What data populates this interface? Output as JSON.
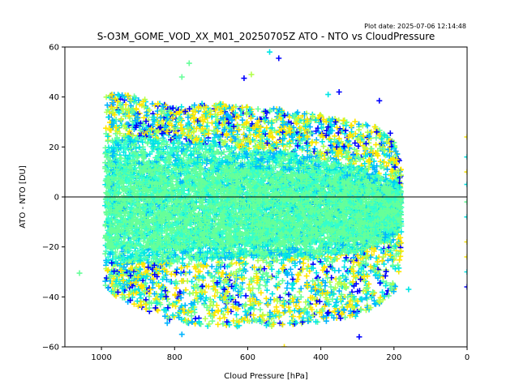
{
  "chart_data": {
    "type": "scatter",
    "title": "S-O3M_GOME_VOD_XX_M01_20250705Z ATO - NTO vs CloudPressure",
    "plot_date": "Plot date: 2025-07-06 12:14:48",
    "xlabel": "Cloud Pressure [hPa]",
    "ylabel": "ATO - NTO [DU]",
    "xlim": [
      1100,
      0
    ],
    "ylim": [
      -60,
      60
    ],
    "x_axis_reversed": true,
    "x_ticks": [
      "1000",
      "800",
      "600",
      "400",
      "200",
      "0"
    ],
    "x_tick_values": [
      1000,
      800,
      600,
      400,
      200,
      0
    ],
    "y_ticks": [
      "60",
      "40",
      "20",
      "0",
      "−20",
      "−40",
      "−60"
    ],
    "y_tick_values": [
      60,
      40,
      20,
      0,
      -20,
      -40,
      -60
    ],
    "reference_line_y": 0,
    "marker": "plus",
    "grid": false,
    "legend": "none",
    "color_groups": [
      {
        "color": "#0000ff"
      },
      {
        "color": "#00b4ff"
      },
      {
        "color": "#00e6e6"
      },
      {
        "color": "#33ffcc"
      },
      {
        "color": "#66ff99"
      },
      {
        "color": "#b3ff4d"
      },
      {
        "color": "#ffe600"
      }
    ],
    "density_envelope": {
      "x": [
        990,
        960,
        900,
        800,
        700,
        600,
        500,
        400,
        300,
        250,
        200,
        180
      ],
      "core_upper": [
        20,
        24,
        24,
        22,
        21,
        19,
        18,
        15,
        12,
        9,
        6,
        4
      ],
      "core_lower": [
        -24,
        -26,
        -26,
        -26,
        -25,
        -24,
        -24,
        -23,
        -22,
        -19,
        -16,
        -12
      ],
      "outer_upper": [
        40,
        42,
        40,
        36,
        38,
        36,
        35,
        33,
        30,
        28,
        22,
        12
      ],
      "outer_lower": [
        -36,
        -40,
        -44,
        -50,
        -52,
        -52,
        -52,
        -50,
        -48,
        -44,
        -38,
        -28
      ]
    },
    "sample_points": [
      {
        "x": 760,
        "y": 53.5,
        "color": "#66ff99"
      },
      {
        "x": 540,
        "y": 58,
        "color": "#00e6e6"
      },
      {
        "x": 515,
        "y": 55.5,
        "color": "#0000ff"
      },
      {
        "x": 780,
        "y": 48,
        "color": "#66ff99"
      },
      {
        "x": 590,
        "y": 49,
        "color": "#b3ff4d"
      },
      {
        "x": 610,
        "y": 47.5,
        "color": "#0000ff"
      },
      {
        "x": 350,
        "y": 42,
        "color": "#0000ff"
      },
      {
        "x": 380,
        "y": 41,
        "color": "#00e6e6"
      },
      {
        "x": 1060,
        "y": -30.5,
        "color": "#66ff99"
      },
      {
        "x": 360,
        "y": 30,
        "color": "#0000ff"
      },
      {
        "x": 380,
        "y": 28,
        "color": "#0000ff"
      },
      {
        "x": 240,
        "y": 38.5,
        "color": "#0000ff"
      },
      {
        "x": 210,
        "y": 25.5,
        "color": "#0000ff"
      },
      {
        "x": 295,
        "y": -56,
        "color": "#0000ff"
      },
      {
        "x": 500,
        "y": -60,
        "color": "#ffe600"
      },
      {
        "x": 780,
        "y": -55,
        "color": "#00b4ff"
      },
      {
        "x": 820,
        "y": -50.5,
        "color": "#00b4ff"
      },
      {
        "x": 160,
        "y": -37,
        "color": "#00e6e6"
      },
      {
        "x": 0,
        "y": 24,
        "color": "#ffe600"
      },
      {
        "x": 0,
        "y": 16,
        "color": "#00e6e6"
      },
      {
        "x": 0,
        "y": 10,
        "color": "#ffe600"
      },
      {
        "x": 0,
        "y": 5,
        "color": "#00e6e6"
      },
      {
        "x": 0,
        "y": -2,
        "color": "#66ff99"
      },
      {
        "x": 0,
        "y": -8,
        "color": "#00e6e6"
      },
      {
        "x": 0,
        "y": -18,
        "color": "#ffe600"
      },
      {
        "x": 0,
        "y": -24,
        "color": "#ffe600"
      },
      {
        "x": 0,
        "y": -30,
        "color": "#00e6e6"
      },
      {
        "x": 0,
        "y": -36,
        "color": "#0000ff"
      }
    ]
  }
}
